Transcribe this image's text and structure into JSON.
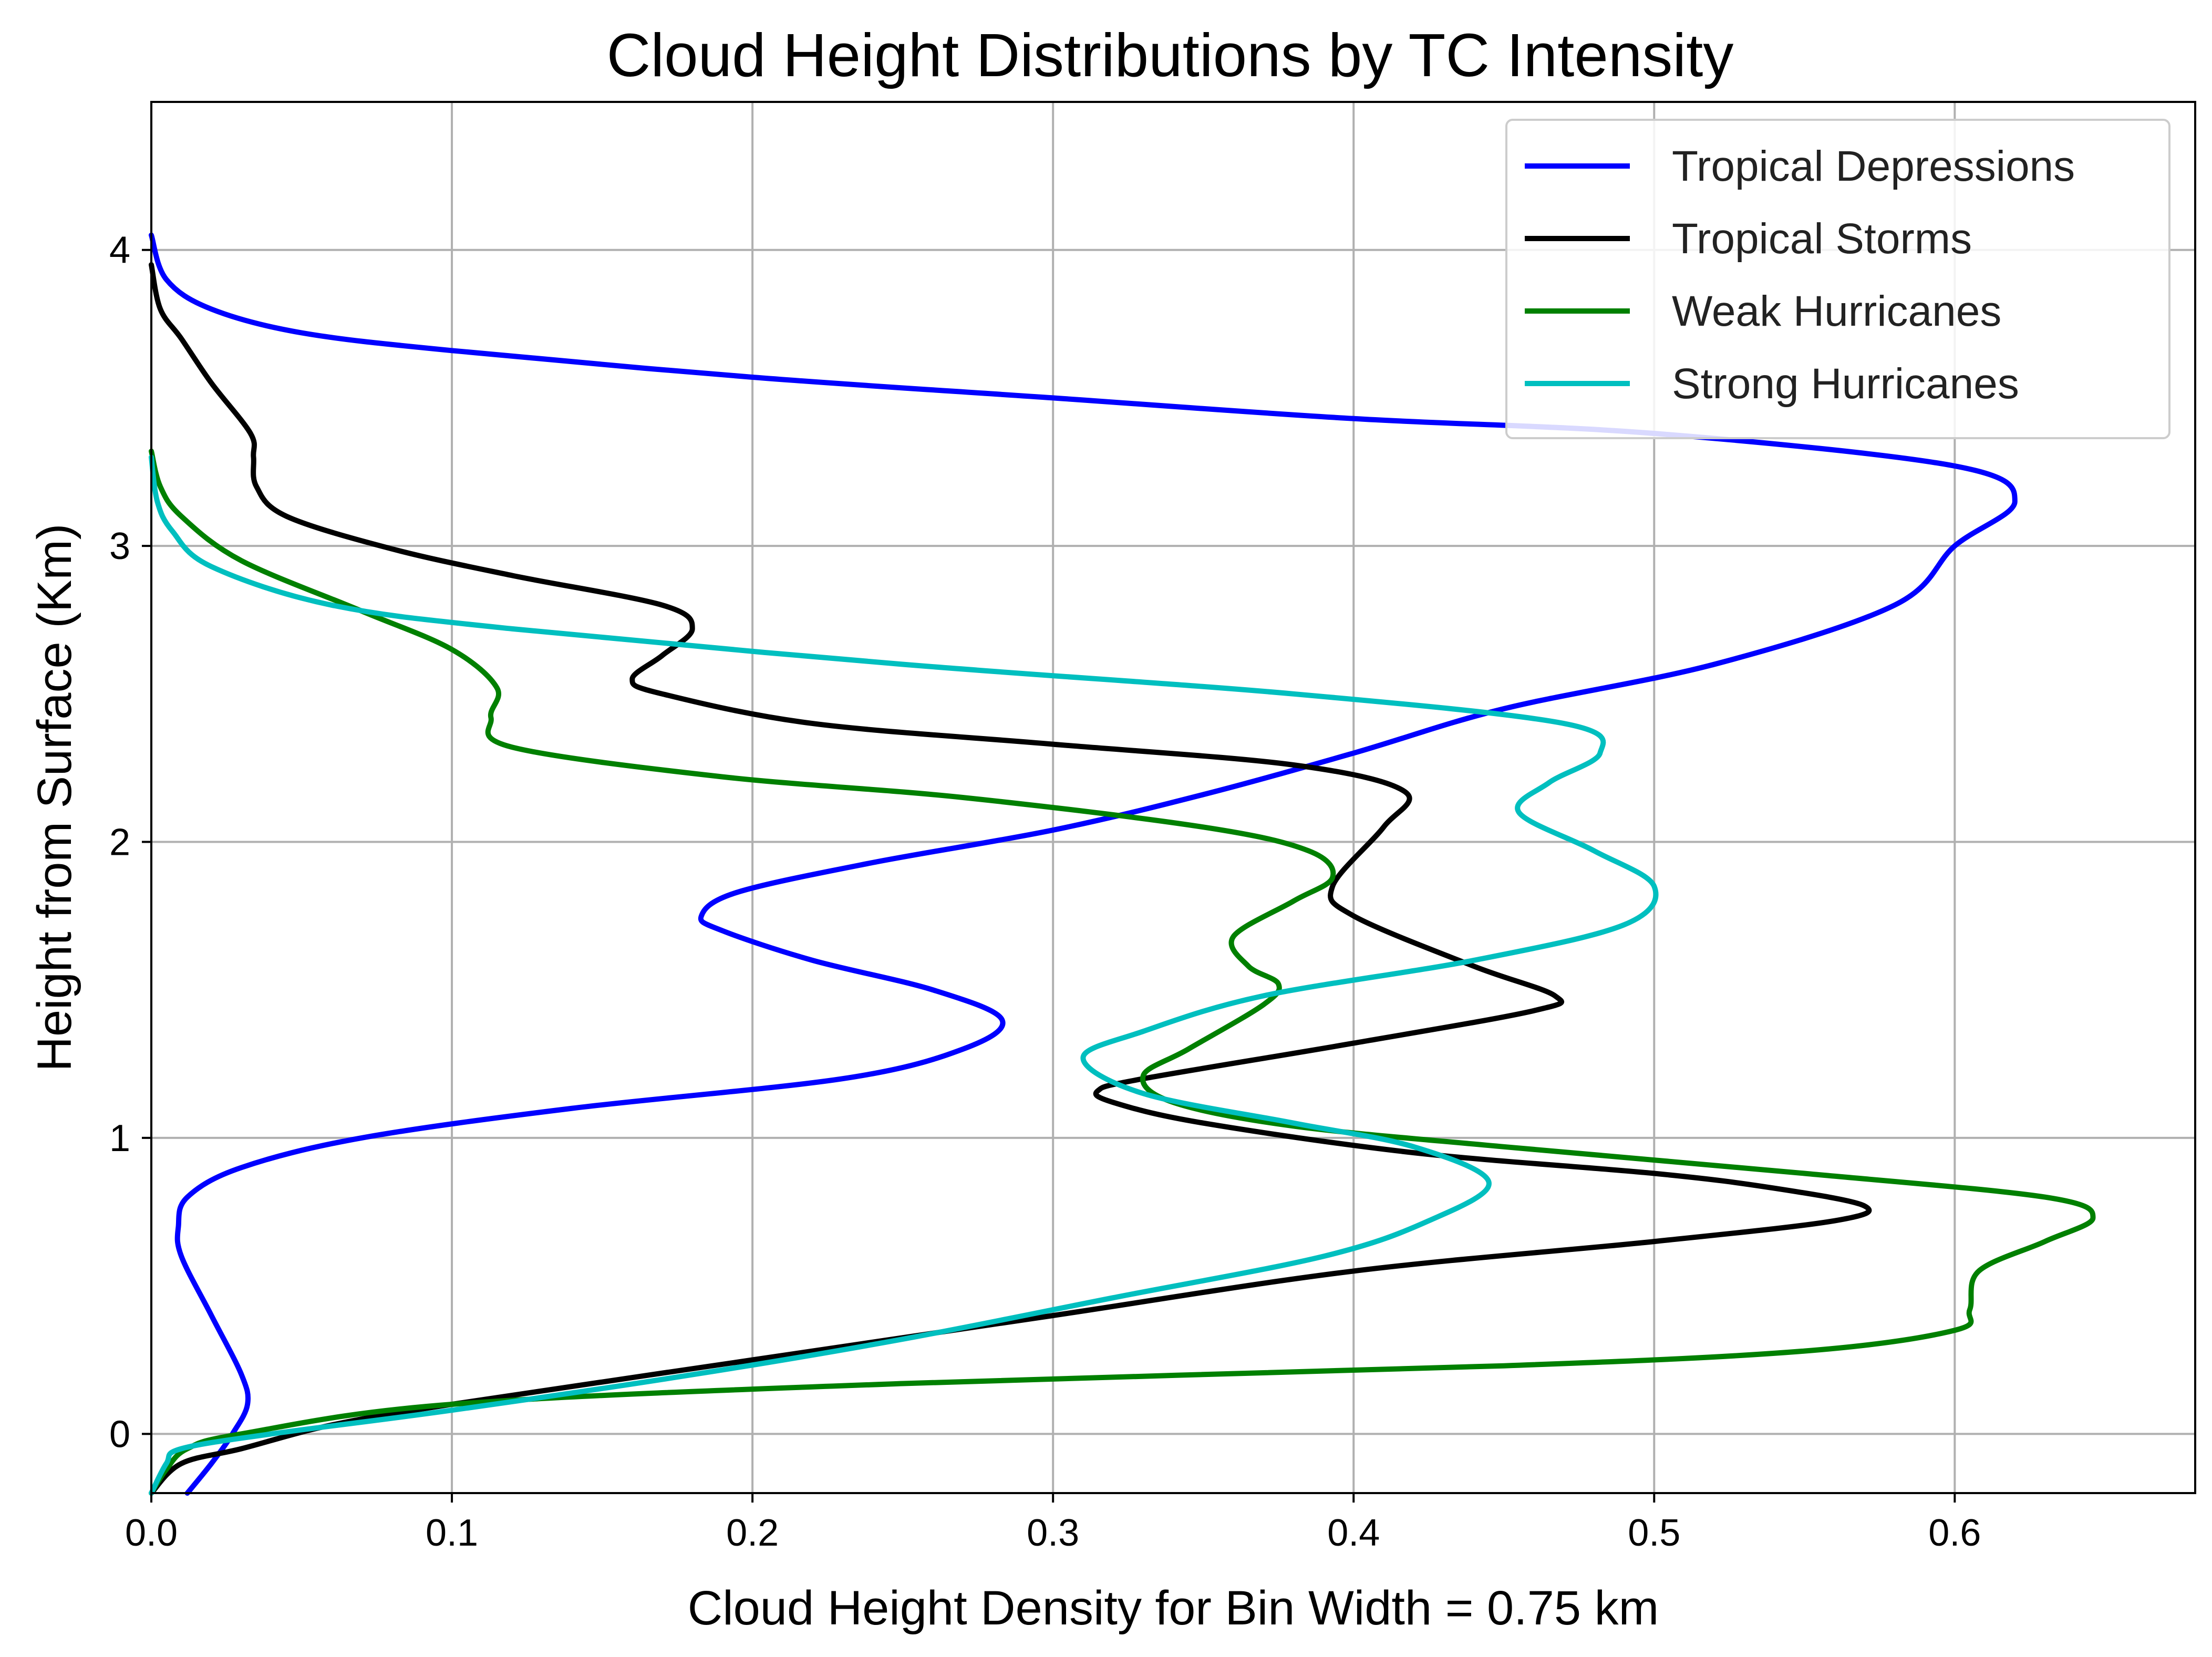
{
  "chart_data": {
    "type": "line",
    "title": "Cloud Height Distributions by TC Intensity",
    "xlabel": "Cloud Height Density for Bin Width = 0.75 km",
    "ylabel": "Height from Surface (Km)",
    "xlim": [
      0.0,
      0.68
    ],
    "ylim": [
      -0.2,
      4.5
    ],
    "xticks": [
      0.0,
      0.1,
      0.2,
      0.3,
      0.4,
      0.5,
      0.6
    ],
    "xtick_labels": [
      "0.0",
      "0.1",
      "0.2",
      "0.3",
      "0.4",
      "0.5",
      "0.6"
    ],
    "yticks": [
      0,
      1,
      2,
      3,
      4
    ],
    "ytick_labels": [
      "0",
      "1",
      "2",
      "3",
      "4"
    ],
    "grid": true,
    "legend_position": "top-right",
    "series": [
      {
        "name": "Tropical Depressions",
        "color": "#0000ff",
        "points": [
          [
            0.012,
            -0.2
          ],
          [
            0.02,
            -0.1
          ],
          [
            0.027,
            0.0
          ],
          [
            0.032,
            0.1
          ],
          [
            0.03,
            0.2
          ],
          [
            0.02,
            0.4
          ],
          [
            0.01,
            0.6
          ],
          [
            0.009,
            0.7
          ],
          [
            0.012,
            0.8
          ],
          [
            0.03,
            0.9
          ],
          [
            0.07,
            1.0
          ],
          [
            0.14,
            1.1
          ],
          [
            0.23,
            1.2
          ],
          [
            0.27,
            1.3
          ],
          [
            0.283,
            1.4
          ],
          [
            0.26,
            1.5
          ],
          [
            0.22,
            1.6
          ],
          [
            0.19,
            1.7
          ],
          [
            0.183,
            1.75
          ],
          [
            0.195,
            1.83
          ],
          [
            0.24,
            1.93
          ],
          [
            0.3,
            2.04
          ],
          [
            0.35,
            2.16
          ],
          [
            0.4,
            2.3
          ],
          [
            0.45,
            2.45
          ],
          [
            0.52,
            2.6
          ],
          [
            0.58,
            2.8
          ],
          [
            0.6,
            3.0
          ],
          [
            0.62,
            3.15
          ],
          [
            0.6,
            3.27
          ],
          [
            0.5,
            3.38
          ],
          [
            0.4,
            3.43
          ],
          [
            0.3,
            3.5
          ],
          [
            0.2,
            3.57
          ],
          [
            0.1,
            3.66
          ],
          [
            0.05,
            3.72
          ],
          [
            0.02,
            3.8
          ],
          [
            0.005,
            3.9
          ],
          [
            0.0,
            4.05
          ]
        ]
      },
      {
        "name": "Tropical Storms",
        "color": "#000000",
        "points": [
          [
            0.0,
            -0.2
          ],
          [
            0.01,
            -0.1
          ],
          [
            0.03,
            -0.05
          ],
          [
            0.06,
            0.03
          ],
          [
            0.1,
            0.1
          ],
          [
            0.2,
            0.25
          ],
          [
            0.3,
            0.4
          ],
          [
            0.4,
            0.55
          ],
          [
            0.5,
            0.65
          ],
          [
            0.56,
            0.72
          ],
          [
            0.57,
            0.77
          ],
          [
            0.54,
            0.83
          ],
          [
            0.5,
            0.88
          ],
          [
            0.42,
            0.95
          ],
          [
            0.35,
            1.05
          ],
          [
            0.32,
            1.12
          ],
          [
            0.315,
            1.16
          ],
          [
            0.33,
            1.2
          ],
          [
            0.4,
            1.32
          ],
          [
            0.46,
            1.43
          ],
          [
            0.467,
            1.48
          ],
          [
            0.44,
            1.58
          ],
          [
            0.4,
            1.75
          ],
          [
            0.393,
            1.85
          ],
          [
            0.41,
            2.05
          ],
          [
            0.417,
            2.17
          ],
          [
            0.38,
            2.26
          ],
          [
            0.3,
            2.33
          ],
          [
            0.22,
            2.4
          ],
          [
            0.17,
            2.5
          ],
          [
            0.16,
            2.55
          ],
          [
            0.17,
            2.63
          ],
          [
            0.18,
            2.72
          ],
          [
            0.17,
            2.8
          ],
          [
            0.12,
            2.9
          ],
          [
            0.08,
            2.99
          ],
          [
            0.045,
            3.1
          ],
          [
            0.035,
            3.2
          ],
          [
            0.034,
            3.3
          ],
          [
            0.033,
            3.38
          ],
          [
            0.02,
            3.55
          ],
          [
            0.01,
            3.7
          ],
          [
            0.003,
            3.8
          ],
          [
            0.0,
            3.95
          ]
        ]
      },
      {
        "name": "Weak Hurricanes",
        "color": "#008000",
        "points": [
          [
            0.0,
            -0.2
          ],
          [
            0.005,
            -0.12
          ],
          [
            0.012,
            -0.05
          ],
          [
            0.03,
            0.0
          ],
          [
            0.1,
            0.1
          ],
          [
            0.25,
            0.17
          ],
          [
            0.45,
            0.23
          ],
          [
            0.55,
            0.28
          ],
          [
            0.6,
            0.35
          ],
          [
            0.605,
            0.42
          ],
          [
            0.608,
            0.55
          ],
          [
            0.63,
            0.65
          ],
          [
            0.646,
            0.73
          ],
          [
            0.63,
            0.8
          ],
          [
            0.55,
            0.88
          ],
          [
            0.45,
            0.97
          ],
          [
            0.38,
            1.04
          ],
          [
            0.34,
            1.12
          ],
          [
            0.33,
            1.21
          ],
          [
            0.345,
            1.3
          ],
          [
            0.37,
            1.45
          ],
          [
            0.375,
            1.52
          ],
          [
            0.365,
            1.58
          ],
          [
            0.36,
            1.68
          ],
          [
            0.38,
            1.8
          ],
          [
            0.393,
            1.88
          ],
          [
            0.385,
            1.97
          ],
          [
            0.35,
            2.05
          ],
          [
            0.27,
            2.15
          ],
          [
            0.19,
            2.22
          ],
          [
            0.12,
            2.32
          ],
          [
            0.113,
            2.42
          ],
          [
            0.115,
            2.52
          ],
          [
            0.1,
            2.65
          ],
          [
            0.07,
            2.78
          ],
          [
            0.03,
            2.95
          ],
          [
            0.01,
            3.1
          ],
          [
            0.003,
            3.2
          ],
          [
            0.0,
            3.32
          ]
        ]
      },
      {
        "name": "Strong Hurricanes",
        "color": "#00bfbf",
        "points": [
          [
            0.0,
            -0.2
          ],
          [
            0.005,
            -0.1
          ],
          [
            0.01,
            -0.05
          ],
          [
            0.04,
            0.0
          ],
          [
            0.1,
            0.08
          ],
          [
            0.18,
            0.2
          ],
          [
            0.25,
            0.32
          ],
          [
            0.32,
            0.46
          ],
          [
            0.39,
            0.6
          ],
          [
            0.425,
            0.72
          ],
          [
            0.445,
            0.85
          ],
          [
            0.42,
            0.97
          ],
          [
            0.38,
            1.05
          ],
          [
            0.33,
            1.15
          ],
          [
            0.31,
            1.27
          ],
          [
            0.33,
            1.36
          ],
          [
            0.37,
            1.48
          ],
          [
            0.44,
            1.6
          ],
          [
            0.49,
            1.72
          ],
          [
            0.5,
            1.85
          ],
          [
            0.48,
            1.97
          ],
          [
            0.455,
            2.1
          ],
          [
            0.465,
            2.2
          ],
          [
            0.482,
            2.3
          ],
          [
            0.47,
            2.4
          ],
          [
            0.38,
            2.5
          ],
          [
            0.25,
            2.6
          ],
          [
            0.12,
            2.72
          ],
          [
            0.06,
            2.8
          ],
          [
            0.02,
            2.93
          ],
          [
            0.007,
            3.05
          ],
          [
            0.002,
            3.15
          ],
          [
            0.0,
            3.3
          ]
        ]
      }
    ]
  }
}
